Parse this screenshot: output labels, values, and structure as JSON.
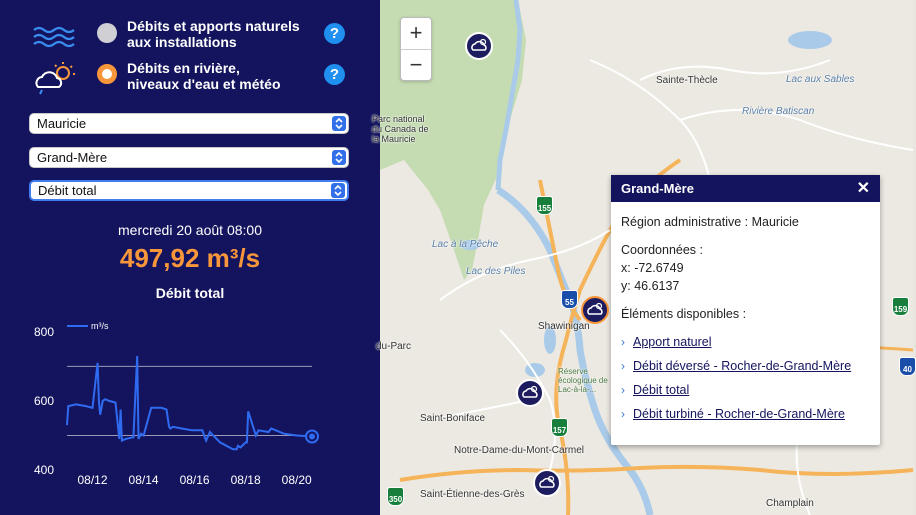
{
  "panel": {
    "options": [
      {
        "label_line1": "Débits et apports naturels",
        "label_line2": "aux installations",
        "selected": false,
        "icon": "water-waves-icon",
        "help": "?"
      },
      {
        "label_line1": "Débits en rivière,",
        "label_line2": "niveaux d'eau et météo",
        "selected": true,
        "icon": "weather-cloud-sun-icon",
        "help": "?"
      }
    ],
    "selects": {
      "region": "Mauricie",
      "station": "Grand-Mère",
      "metric": "Débit total"
    },
    "reading": {
      "date": "mercredi 20 août 08:00",
      "value": "497,92 m³/s",
      "metric": "Débit total"
    }
  },
  "chart_data": {
    "type": "line",
    "legend": "m³/s",
    "x_ticks": [
      "08/12",
      "08/14",
      "08/16",
      "08/18",
      "08/20"
    ],
    "y_ticks": [
      "800",
      "600",
      "400"
    ],
    "ylim": [
      400,
      840
    ],
    "xlim": [
      0,
      9.6
    ],
    "ref_lines": [
      700,
      500
    ],
    "grid": false,
    "series": [
      {
        "color": "#2f6bf0",
        "x": [
          0.0,
          0.05,
          0.35,
          0.75,
          1.0,
          1.2,
          1.25,
          1.3,
          1.4,
          1.5,
          1.65,
          1.9,
          2.05,
          2.1,
          2.15,
          2.3,
          2.6,
          2.75,
          2.8,
          2.9,
          3.0,
          3.3,
          3.7,
          3.9,
          4.0,
          4.05,
          4.15,
          4.5,
          4.9,
          5.3,
          5.4,
          5.45,
          5.6,
          6.0,
          6.5,
          6.65,
          6.7,
          6.8,
          7.0,
          7.05,
          7.1,
          7.4,
          7.5,
          7.9,
          8.0,
          8.5,
          9.0,
          9.6
        ],
        "y": [
          530,
          585,
          590,
          585,
          580,
          710,
          600,
          560,
          600,
          605,
          600,
          595,
          490,
          575,
          485,
          490,
          495,
          730,
          490,
          505,
          500,
          580,
          580,
          575,
          525,
          520,
          525,
          520,
          515,
          515,
          495,
          485,
          510,
          480,
          460,
          460,
          470,
          465,
          480,
          480,
          570,
          500,
          515,
          510,
          520,
          505,
          500,
          497
        ]
      }
    ]
  },
  "map": {
    "zoom_in": "+",
    "zoom_out": "−",
    "places": [
      {
        "text": "Lac aux Sables",
        "water": true
      },
      {
        "text": "Sainte-Thècle",
        "water": false
      },
      {
        "text": "Rivière Batiscan",
        "water": true
      },
      {
        "text": "Parc national du Canada de la Mauricie",
        "water": false
      },
      {
        "text": "Lac à la Pêche",
        "water": true
      },
      {
        "text": "Lac des Piles",
        "water": true
      },
      {
        "text": "Shawinigan",
        "water": false
      },
      {
        "text": "du-Parc",
        "water": false
      },
      {
        "text": "Réserve écologique de Lac-à-la-...",
        "water": false
      },
      {
        "text": "Saint-Boniface",
        "water": false
      },
      {
        "text": "Notre-Dame-du-Mont-Carmel",
        "water": false
      },
      {
        "text": "Saint-Étienne-des-Grès",
        "water": false
      },
      {
        "text": "Champlain",
        "water": false
      }
    ],
    "shields": [
      "155",
      "55",
      "157",
      "350",
      "159",
      "40"
    ]
  },
  "popup": {
    "title": "Grand-Mère",
    "close": "✕",
    "region_line": "Région administrative : Mauricie",
    "coords_title": "Coordonnées :",
    "coord_x": "x:  -72.6749",
    "coord_y": "y:  46.6137",
    "elements_title": "Éléments disponibles :",
    "links": [
      "Apport naturel",
      "Débit déversé - Rocher-de-Grand-Mère",
      "Débit total",
      "Débit turbiné - Rocher-de-Grand-Mère"
    ]
  }
}
